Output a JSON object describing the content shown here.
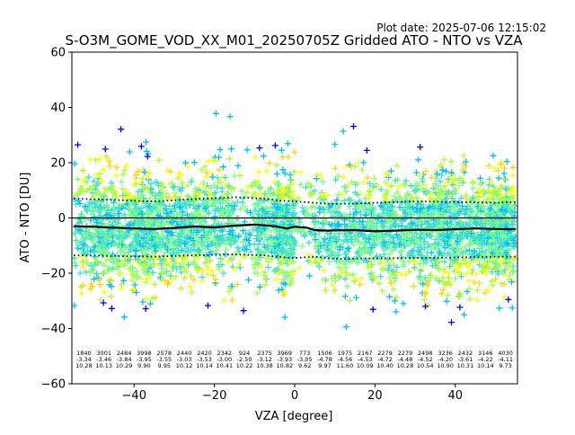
{
  "plot_date": "Plot date: 2025-07-06 12:15:02",
  "chart_data": {
    "type": "scatter",
    "title": "S-O3M_GOME_VOD_XX_M01_20250705Z Gridded ATO - NTO vs VZA",
    "xlabel": "VZA [degree]",
    "ylabel": "ATO - NTO [DU]",
    "xlim": [
      -55.5,
      55.5
    ],
    "ylim": [
      -60,
      60
    ],
    "xticks": [
      -40,
      -20,
      0,
      20,
      40
    ],
    "yticks": [
      -60,
      -40,
      -20,
      0,
      20,
      40,
      60
    ],
    "grid": false,
    "legend": "none",
    "marker": "+",
    "marker_colors": [
      "#0000ff",
      "#00bfff",
      "#40e0d0",
      "#7fff7f",
      "#adff2f",
      "#ffff00",
      "#ffd700"
    ],
    "zero_line": {
      "y": 0,
      "color": "#000000"
    },
    "bins": [
      {
        "vza": -52.5,
        "count": 1840,
        "mean": -3.34,
        "sd": 10.28
      },
      {
        "vza": -47.5,
        "count": 3001,
        "mean": -3.46,
        "sd": 10.13
      },
      {
        "vza": -42.5,
        "count": 2484,
        "mean": -3.84,
        "sd": 10.29
      },
      {
        "vza": -37.5,
        "count": 3998,
        "mean": -3.95,
        "sd": 9.9
      },
      {
        "vza": -32.5,
        "count": 2578,
        "mean": -3.55,
        "sd": 9.95
      },
      {
        "vza": -27.5,
        "count": 2440,
        "mean": -3.03,
        "sd": 10.12
      },
      {
        "vza": -22.5,
        "count": 2420,
        "mean": -3.53,
        "sd": 10.14
      },
      {
        "vza": -17.5,
        "count": 2342,
        "mean": -3.0,
        "sd": 10.41
      },
      {
        "vza": -12.5,
        "count": 924,
        "mean": -2.5,
        "sd": 10.22
      },
      {
        "vza": -7.5,
        "count": 2375,
        "mean": -3.12,
        "sd": 10.38
      },
      {
        "vza": -2.5,
        "count": 3969,
        "mean": -3.93,
        "sd": 10.82
      },
      {
        "vza": 2.5,
        "count": 773,
        "mean": -3.05,
        "sd": 9.62
      },
      {
        "vza": 7.5,
        "count": 1506,
        "mean": -4.78,
        "sd": 9.97
      },
      {
        "vza": 12.5,
        "count": 1975,
        "mean": -4.56,
        "sd": 11.6
      },
      {
        "vza": 17.5,
        "count": 2167,
        "mean": -4.53,
        "sd": 10.09
      },
      {
        "vza": 22.5,
        "count": 2279,
        "mean": -4.72,
        "sd": 10.4
      },
      {
        "vza": 27.5,
        "count": 2279,
        "mean": -4.48,
        "sd": 10.28
      },
      {
        "vza": 32.5,
        "count": 2498,
        "mean": -4.52,
        "sd": 10.54
      },
      {
        "vza": 37.5,
        "count": 3236,
        "mean": -4.2,
        "sd": 10.9
      },
      {
        "vza": 42.5,
        "count": 2432,
        "mean": -3.61,
        "sd": 10.31
      },
      {
        "vza": 47.5,
        "count": 3146,
        "mean": -4.22,
        "sd": 10.14
      },
      {
        "vza": 52.5,
        "count": 4030,
        "mean": -4.11,
        "sd": 9.73
      }
    ],
    "mean_line": {
      "color": "#000000",
      "x": [
        -55,
        -50,
        -45,
        -40,
        -35,
        -30,
        -25,
        -20,
        -15,
        -10,
        -5,
        -2,
        0,
        3,
        5,
        8,
        10,
        15,
        20,
        25,
        30,
        35,
        40,
        45,
        50,
        55
      ],
      "y": [
        -3.0,
        -3.2,
        -3.5,
        -3.8,
        -4.0,
        -3.6,
        -3.1,
        -3.4,
        -2.8,
        -2.4,
        -3.0,
        -3.8,
        -3.2,
        -3.5,
        -4.4,
        -4.6,
        -4.5,
        -4.4,
        -4.8,
        -4.6,
        -4.3,
        -4.4,
        -4.1,
        -3.8,
        -4.0,
        -4.1
      ]
    },
    "upper_sd_line": {
      "style": "dotted",
      "x": [
        -55,
        -45,
        -35,
        -25,
        -15,
        -8,
        -3,
        0,
        5,
        10,
        20,
        30,
        40,
        50,
        55
      ],
      "y": [
        7.0,
        6.5,
        6.0,
        6.8,
        7.5,
        7.0,
        6.2,
        6.0,
        5.5,
        5.0,
        5.5,
        6.0,
        5.8,
        5.5,
        5.8
      ]
    },
    "lower_sd_line": {
      "style": "dotted",
      "x": [
        -55,
        -45,
        -35,
        -25,
        -15,
        -8,
        -3,
        0,
        5,
        10,
        20,
        30,
        40,
        50,
        55
      ],
      "y": [
        -13.5,
        -13.8,
        -14.0,
        -13.5,
        -13.2,
        -13.5,
        -14.2,
        -14.5,
        -14.0,
        -14.8,
        -14.6,
        -14.5,
        -14.3,
        -14.0,
        -14.0
      ]
    }
  }
}
